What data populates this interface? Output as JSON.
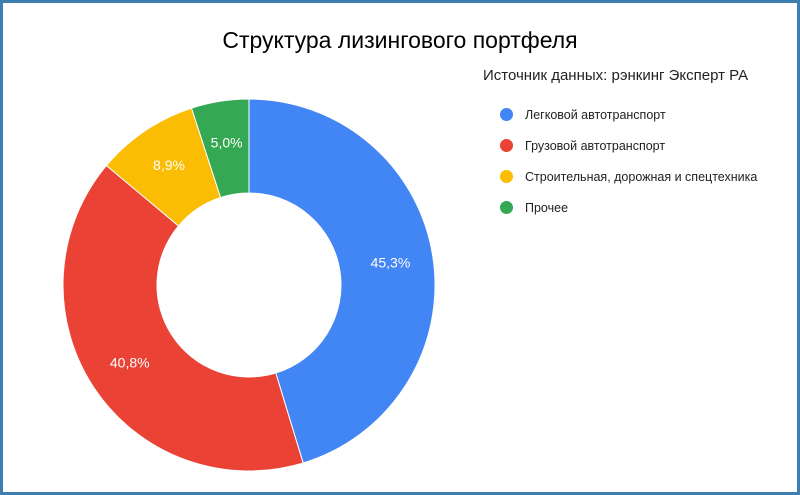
{
  "chart_data": {
    "type": "pie",
    "donut": true,
    "title": "Структура лизингового портфеля",
    "subtitle": "Источник данных: рэнкинг Эксперт РА",
    "legend_position": "right",
    "slices": [
      {
        "name": "Легковой автотранспорт",
        "value": 45.3,
        "label": "45,3%",
        "color": "#4285f4"
      },
      {
        "name": "Грузовой автотранспорт",
        "value": 40.8,
        "label": "40,8%",
        "color": "#ea4335"
      },
      {
        "name": "Строительная, дорожная и спецтехника",
        "value": 8.9,
        "label": "8,9%",
        "color": "#fbbc04"
      },
      {
        "name": "Прочее",
        "value": 5.0,
        "label": "5,0%",
        "color": "#34a853"
      }
    ]
  }
}
